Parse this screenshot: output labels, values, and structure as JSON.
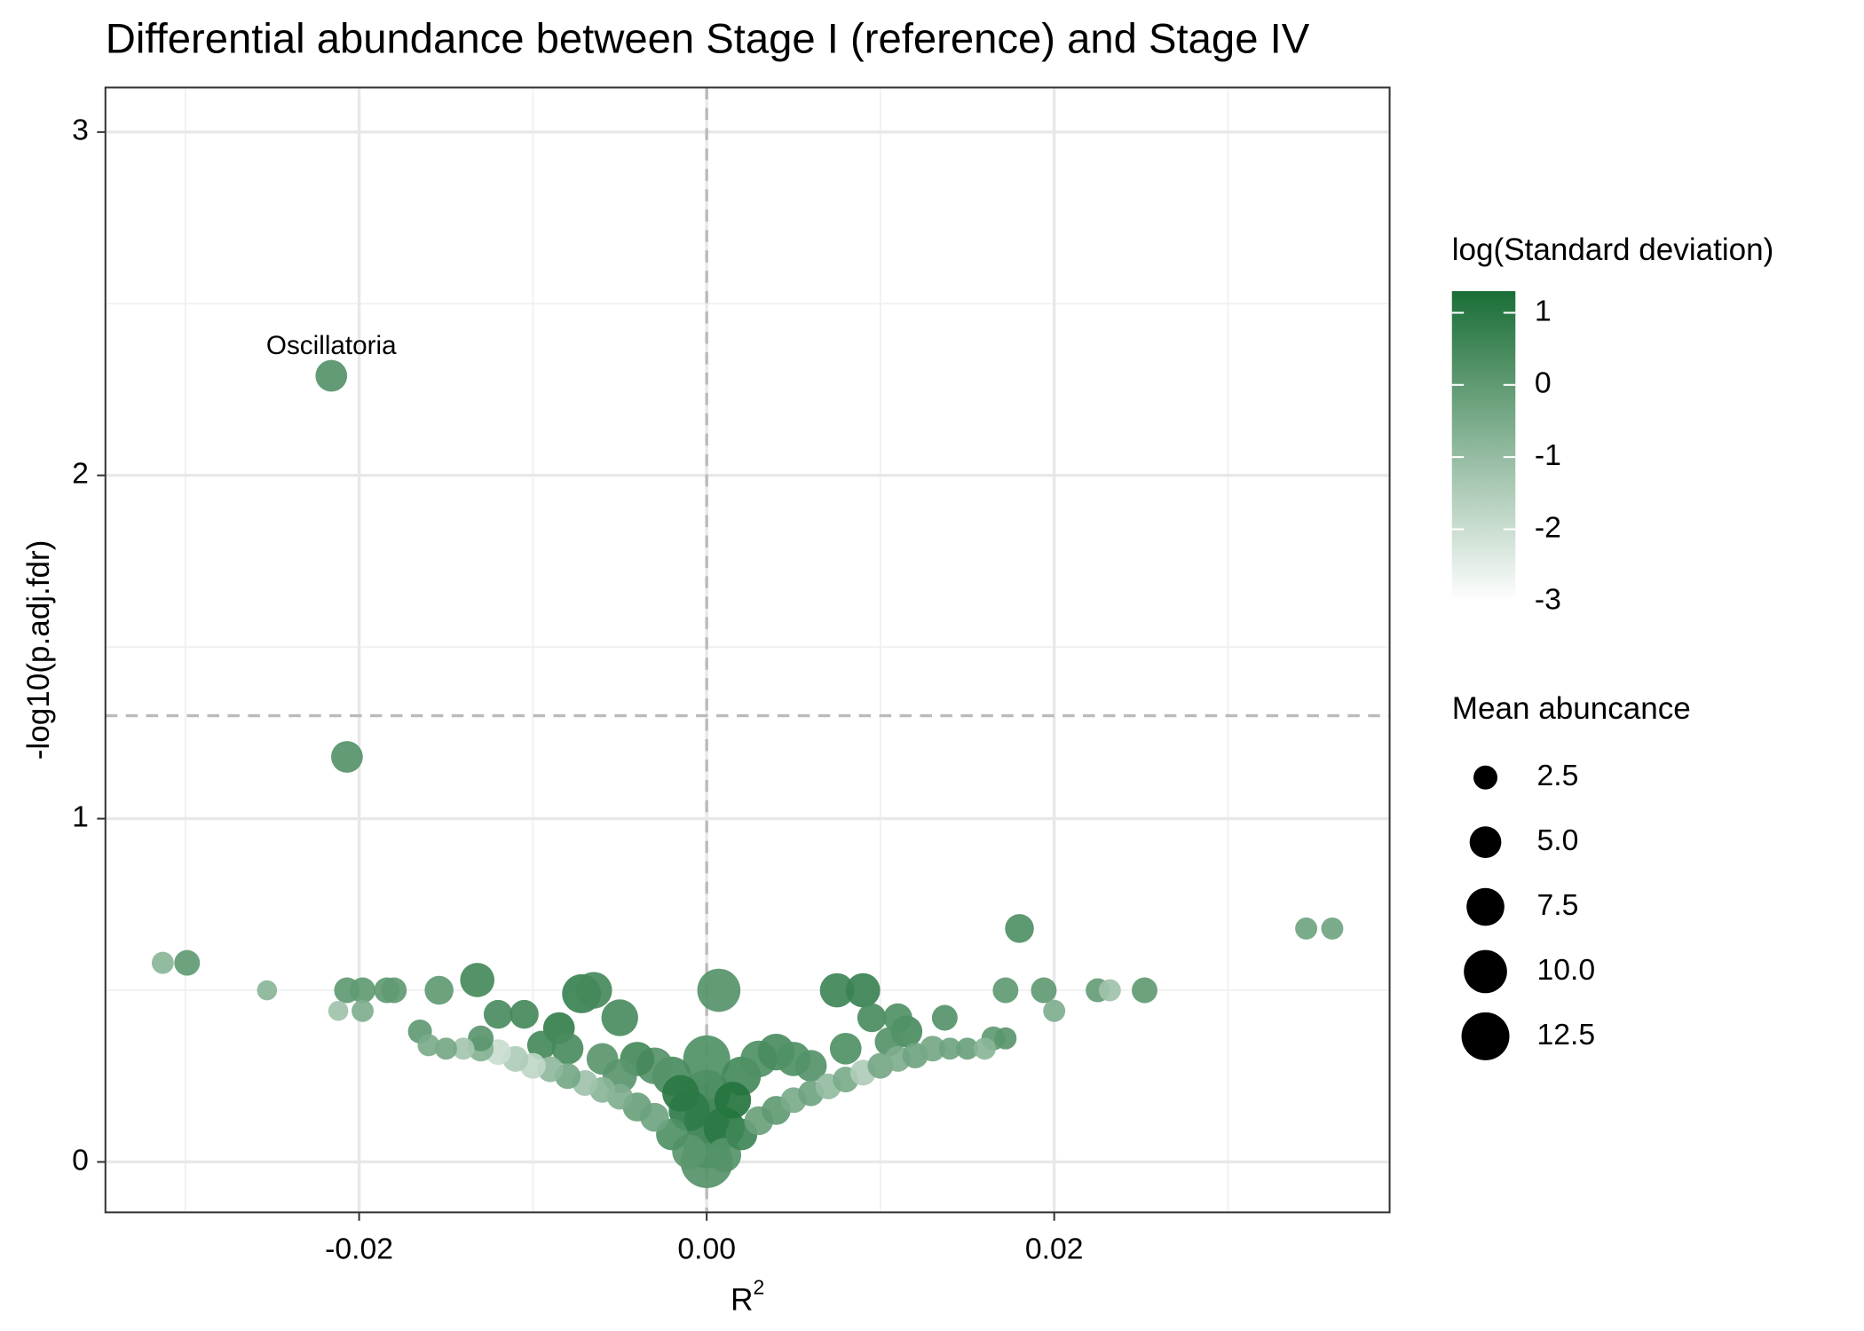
{
  "chart_data": {
    "type": "scatter",
    "title": "Differential abundance between Stage I (reference) and Stage IV",
    "xlabel": {
      "text": "R",
      "superscript": "2"
    },
    "ylabel": "-log10(p.adj.fdr)",
    "xlim": [
      -0.0346,
      0.0393
    ],
    "ylim": [
      -0.147,
      3.13
    ],
    "xticks": [
      -0.02,
      {
        "value": 0,
        "label": "0.00"
      },
      0.02
    ],
    "yticks": [
      0,
      1,
      2,
      3
    ],
    "xminor": [
      -0.03,
      -0.01,
      0.01,
      0.03
    ],
    "yminor": [
      0.5,
      1.5,
      2.5
    ],
    "grid": true,
    "hlines": [
      1.3
    ],
    "vlines": [
      0
    ],
    "series": [
      {
        "x": [
          -0.0216,
          -0.0207,
          0.018,
          0.0345,
          0.036,
          -0.0313,
          -0.0299,
          -0.0253,
          -0.0207,
          -0.0198,
          -0.0184,
          -0.018,
          -0.0154,
          -0.0132,
          -0.0072,
          -0.0065,
          -0.005,
          0.0007,
          0.0075,
          0.009,
          0.0095,
          0.011,
          0.0137,
          0.0172,
          0.0194,
          0.0225,
          0.0252,
          0.02,
          0.0232,
          -0.0212,
          -0.0198,
          -0.0085,
          -0.012,
          -0.0105,
          0,
          0,
          0,
          0,
          0,
          0.001,
          -0.001,
          0.002,
          -0.002,
          0.003,
          -0.003,
          0.004,
          -0.004,
          0.005,
          -0.005,
          0.006,
          -0.006,
          0.002,
          -0.002,
          0.003,
          -0.003,
          0.004,
          -0.004,
          0.005,
          -0.005,
          0.006,
          -0.006,
          0.007,
          -0.007,
          0.008,
          -0.008,
          0.009,
          -0.009,
          0.01,
          -0.01,
          0.011,
          -0.011,
          0.012,
          -0.012,
          0.013,
          -0.013,
          0.014,
          -0.014,
          0.015,
          -0.015,
          0.016,
          -0.016,
          0.0165,
          -0.0165,
          0.008,
          -0.008,
          0.0115,
          0.0105,
          -0.0095,
          -0.013,
          0.0172,
          0.001,
          -0.001,
          0.0015,
          -0.0015
        ],
        "values": [
          2.29,
          1.18,
          0.68,
          0.68,
          0.68,
          0.58,
          0.58,
          0.5,
          0.5,
          0.5,
          0.5,
          0.5,
          0.5,
          0.53,
          0.49,
          0.5,
          0.42,
          0.5,
          0.5,
          0.5,
          0.42,
          0.42,
          0.42,
          0.5,
          0.5,
          0.5,
          0.5,
          0.44,
          0.5,
          0.44,
          0.44,
          0.39,
          0.43,
          0.43,
          0,
          0.05,
          0.12,
          0.2,
          0.3,
          0.1,
          0.15,
          0.25,
          0.25,
          0.3,
          0.28,
          0.32,
          0.3,
          0.3,
          0.25,
          0.28,
          0.3,
          0.08,
          0.08,
          0.12,
          0.13,
          0.15,
          0.16,
          0.18,
          0.19,
          0.2,
          0.21,
          0.22,
          0.23,
          0.24,
          0.25,
          0.26,
          0.27,
          0.28,
          0.28,
          0.3,
          0.3,
          0.31,
          0.32,
          0.33,
          0.33,
          0.33,
          0.33,
          0.33,
          0.33,
          0.33,
          0.34,
          0.36,
          0.38,
          0.33,
          0.33,
          0.38,
          0.35,
          0.34,
          0.36,
          0.36,
          0.02,
          0.03,
          0.18,
          0.2
        ],
        "sizes": [
          5,
          5,
          4,
          2,
          2,
          2,
          3,
          1.5,
          3,
          3,
          3,
          3,
          4,
          6,
          8,
          7,
          7,
          10,
          6,
          6,
          4,
          4,
          3,
          3,
          3,
          2.5,
          3,
          2,
          2,
          1.5,
          2,
          5,
          4,
          4,
          15,
          12,
          11,
          12,
          12,
          9,
          9,
          8,
          8,
          7,
          7,
          7,
          6,
          6,
          6,
          5,
          5,
          5,
          5,
          4,
          4,
          4,
          4,
          3,
          3,
          3,
          3,
          3,
          3,
          3,
          3,
          3,
          3,
          3,
          3,
          3,
          3,
          3,
          3,
          3,
          3,
          2,
          2,
          2,
          2,
          2,
          2,
          2.5,
          2.5,
          5,
          5,
          5,
          4,
          4,
          3,
          2,
          6,
          6,
          7,
          7
        ],
        "log_sd": [
          0.2,
          0.2,
          0.3,
          -0.3,
          -0.3,
          -0.8,
          0,
          -0.8,
          0,
          0,
          0,
          0,
          0,
          0.5,
          0.7,
          0.5,
          0.4,
          0.2,
          0.6,
          0.7,
          0.4,
          0.3,
          0.2,
          0,
          0,
          -0.1,
          0,
          -0.6,
          -1.2,
          -1.2,
          -0.6,
          0.8,
          0.4,
          0.5,
          0.2,
          0.3,
          0.5,
          0.6,
          0.3,
          1.0,
          0.9,
          0.5,
          0.4,
          0.3,
          0.2,
          0.4,
          0.5,
          0.3,
          0.1,
          0.2,
          0.1,
          0.6,
          0.3,
          -0.2,
          -0.3,
          0,
          -0.2,
          -0.5,
          -0.6,
          -0.3,
          -0.8,
          -1,
          -1.2,
          -0.5,
          -0.4,
          -1.5,
          -0.9,
          -0.4,
          -1.8,
          -0.6,
          -1.5,
          -0.3,
          -2,
          -0.4,
          -0.7,
          -0.3,
          -1.3,
          -0.2,
          -0.4,
          -0.8,
          -0.5,
          0,
          0,
          0.3,
          0.4,
          0.4,
          0.2,
          0.5,
          0.1,
          0.1,
          0.2,
          0.1,
          1.1,
          1.0
        ]
      }
    ],
    "annotations": [
      {
        "text": "Oscillatoria",
        "x": -0.0216,
        "y": 2.29
      }
    ],
    "color_scale": {
      "title": "log(Standard deviation)",
      "low": "#ffffff",
      "high": "#1a6e36",
      "limits": [
        -3,
        1.3
      ],
      "ticks": [
        -3,
        -2,
        -1,
        0,
        1
      ]
    },
    "size_legend": {
      "title": "Mean abuncance",
      "values": [
        2.5,
        {
          "value": 5,
          "label": "5.0"
        },
        7.5,
        {
          "value": 10,
          "label": "10.0"
        },
        12.5
      ]
    }
  }
}
